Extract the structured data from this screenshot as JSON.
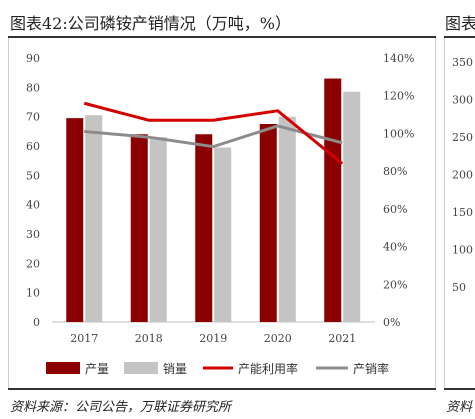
{
  "title": "图表42:公司磷铵产销情况（万吨，%）",
  "next_title": "图表",
  "source": "资料来源：公司公告，万联证券研究所",
  "next_source": "资料",
  "colors": {
    "production": "#8b0000",
    "sales": "#c4c4c4",
    "capacity_utilization": "#d40000",
    "sales_rate": "#8c8c8c"
  },
  "chart_data": {
    "type": "bar",
    "categories": [
      "2017",
      "2018",
      "2019",
      "2020",
      "2021"
    ],
    "series": [
      {
        "name": "产量",
        "kind": "bar",
        "axis": "left",
        "values": [
          69.5,
          64,
          64,
          67.5,
          83
        ]
      },
      {
        "name": "销量",
        "kind": "bar",
        "axis": "left",
        "values": [
          70.5,
          63,
          59.5,
          70,
          78.5
        ]
      },
      {
        "name": "产能利用率",
        "kind": "line",
        "axis": "right",
        "values": [
          1.16,
          1.07,
          1.07,
          1.12,
          0.84
        ]
      },
      {
        "name": "产销率",
        "kind": "line",
        "axis": "right",
        "values": [
          1.01,
          0.98,
          0.93,
          1.04,
          0.95
        ]
      }
    ],
    "left_axis": {
      "ylim": [
        0,
        90
      ],
      "ticks": [
        "0",
        "10",
        "20",
        "30",
        "40",
        "50",
        "60",
        "70",
        "80",
        "90"
      ]
    },
    "right_axis": {
      "ylim": [
        0,
        1.4
      ],
      "ticks": [
        "0%",
        "20%",
        "40%",
        "60%",
        "80%",
        "100%",
        "120%",
        "140%"
      ]
    },
    "next_left_ticks": [
      "350",
      "300",
      "250",
      "200",
      "150",
      "100",
      "50"
    ],
    "legend_position": "bottom",
    "grid": false
  }
}
